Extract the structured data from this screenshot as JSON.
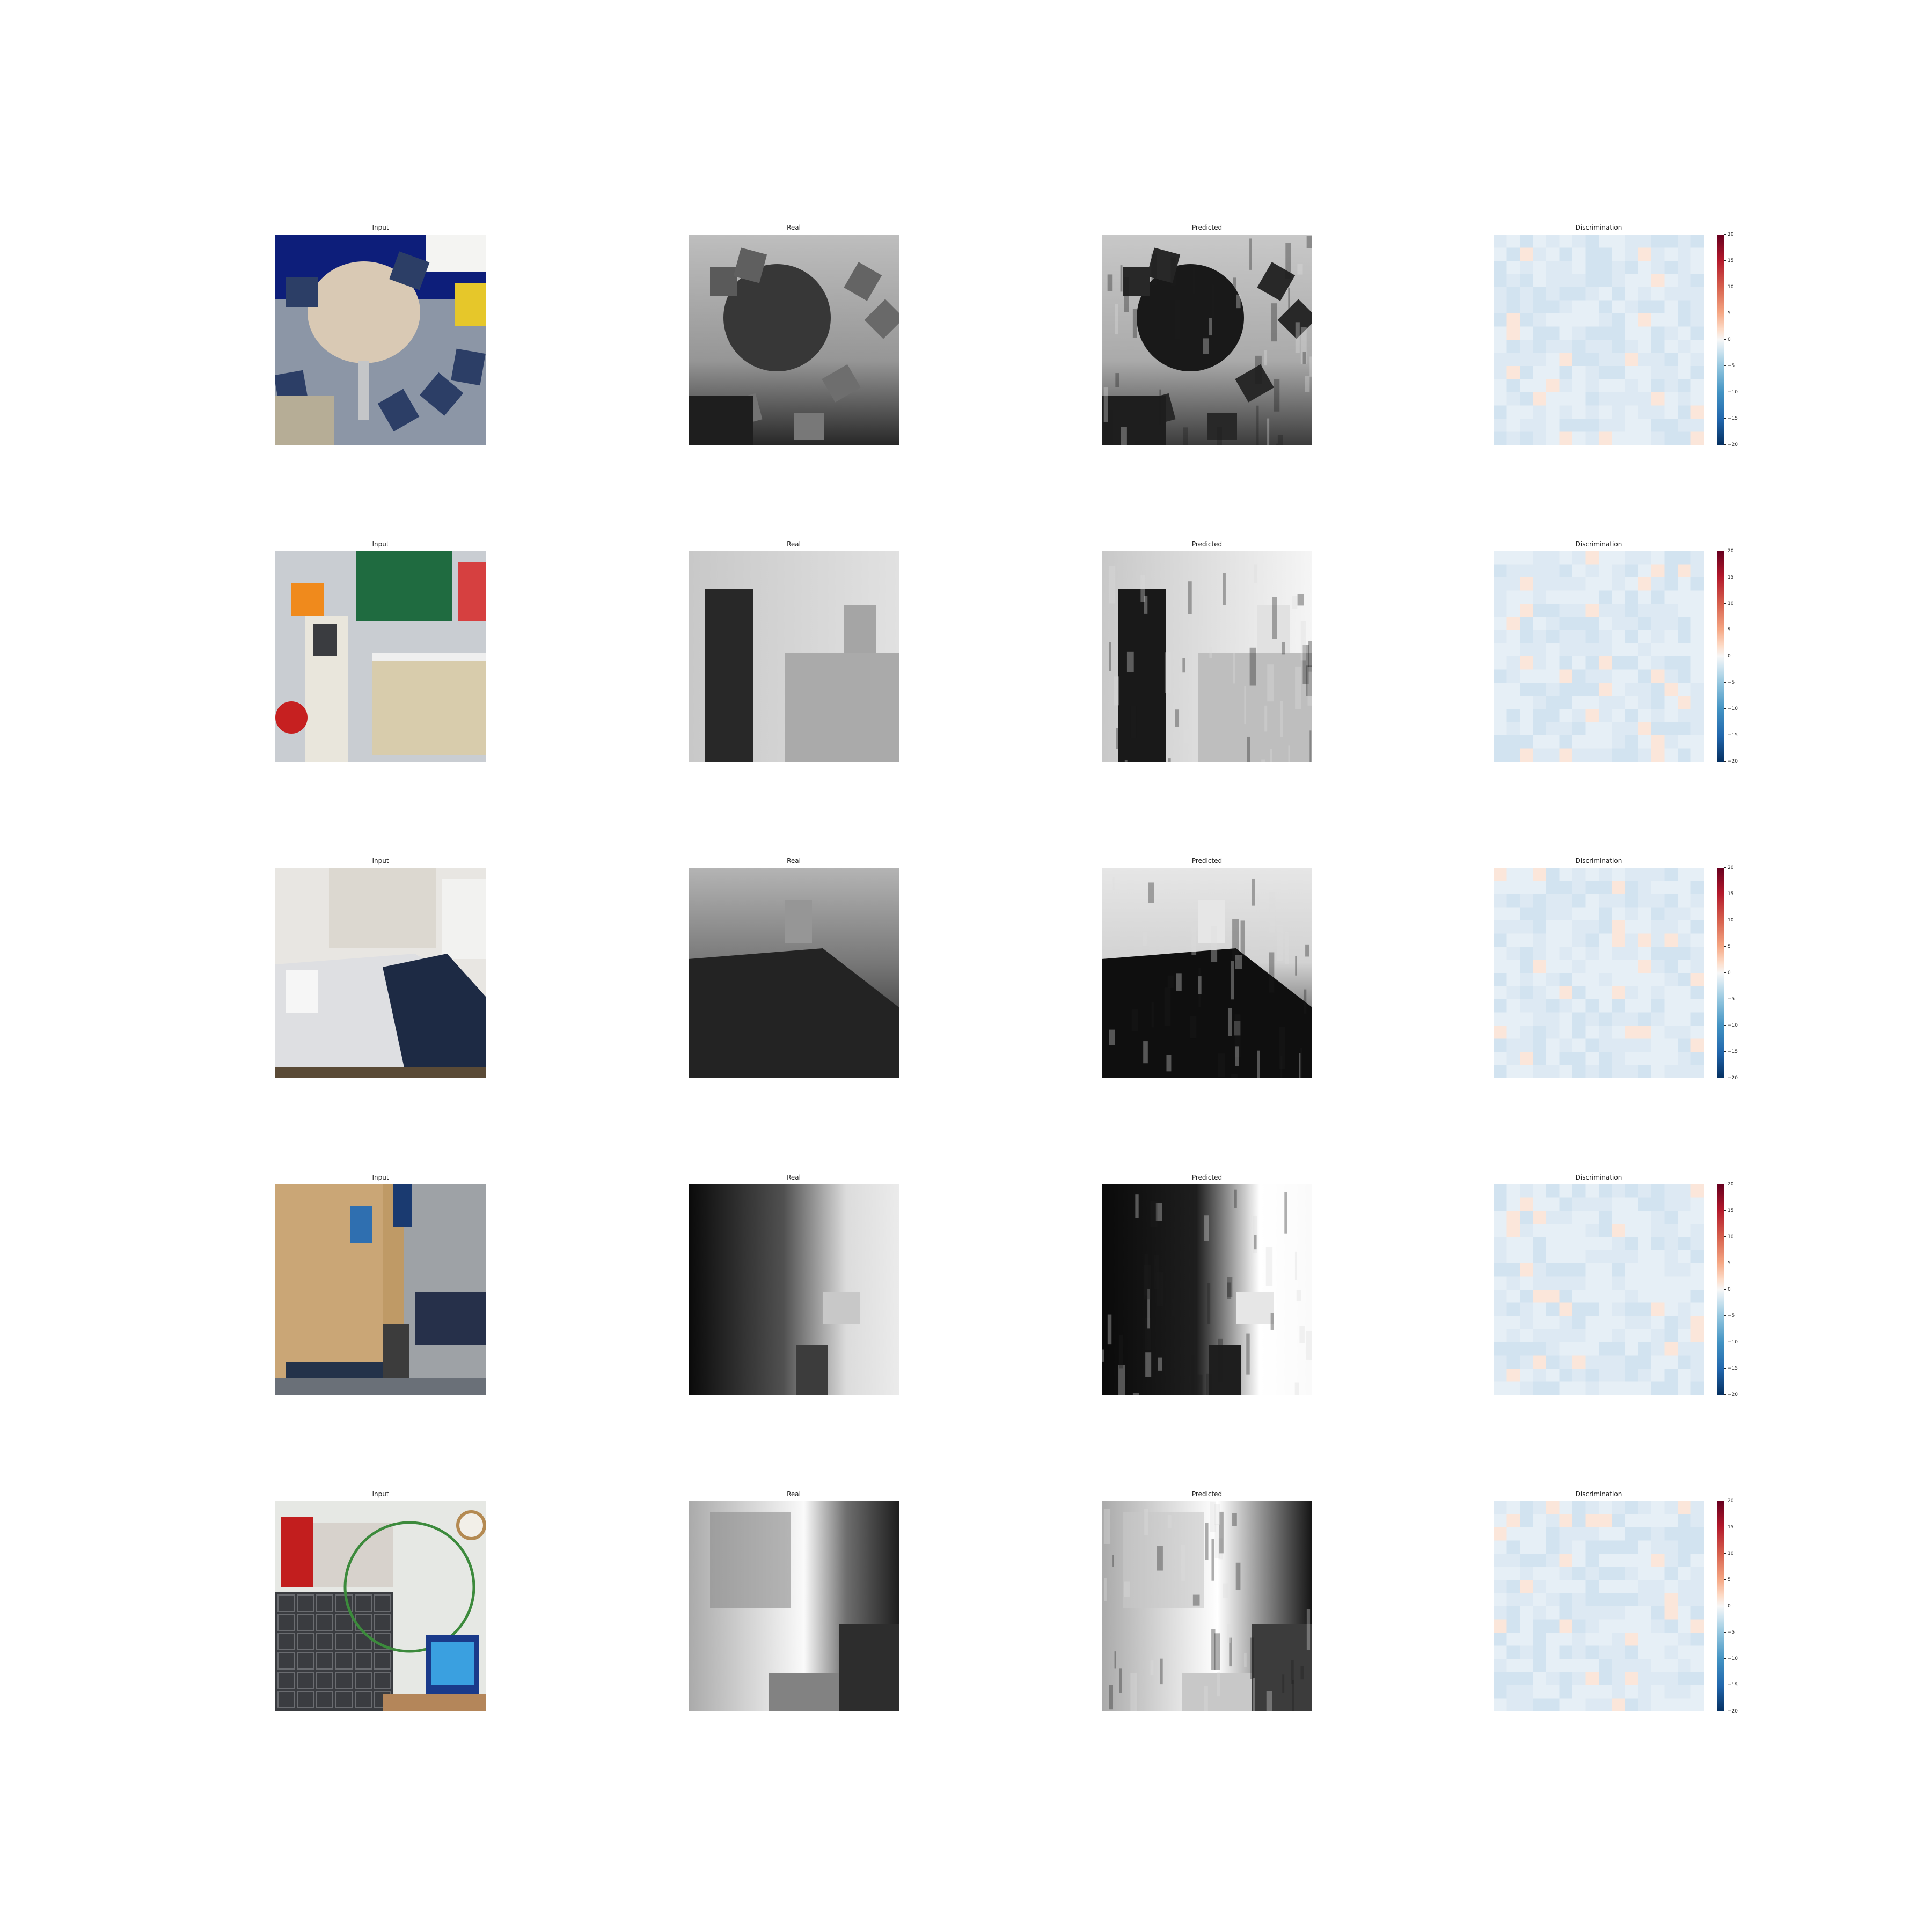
{
  "column_titles": [
    "Input",
    "Real",
    "Predicted",
    "Discrimination"
  ],
  "colorbar": {
    "vmin": -20,
    "vmax": 20,
    "tick_labels": [
      "20",
      "15",
      "10",
      "5",
      "0",
      "−5",
      "−10",
      "−15",
      "−20"
    ],
    "colormap": "RdBu"
  },
  "rows": [
    {
      "scene": "round-table-with-chairs"
    },
    {
      "scene": "kiosk-and-counter"
    },
    {
      "scene": "bedroom-with-bed"
    },
    {
      "scene": "wood-panelled-lounge"
    },
    {
      "scene": "clothes-rack-and-tv"
    }
  ]
}
